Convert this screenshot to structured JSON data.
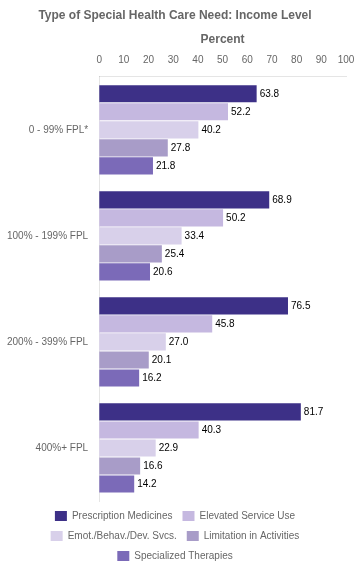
{
  "chart_data": {
    "type": "bar",
    "orientation": "horizontal",
    "title": "Type of Special Health Care Need: Income Level",
    "xlabel": "Percent",
    "categories": [
      "0 - 99% FPL*",
      "100% - 199% FPL",
      "200% - 399% FPL",
      "400%+ FPL"
    ],
    "series": [
      {
        "name": "Prescription Medicines",
        "color": "#3d3087",
        "values": [
          63.8,
          68.9,
          76.5,
          81.7
        ]
      },
      {
        "name": "Elevated Service Use",
        "color": "#c5b8e0",
        "values": [
          52.2,
          50.2,
          45.8,
          40.3
        ]
      },
      {
        "name": "Emot./Behav./Dev. Svcs.",
        "color": "#d8d0ea",
        "values": [
          40.2,
          33.4,
          27.0,
          22.9
        ],
        "value_labels": [
          "40.2",
          "33.4",
          "27.0",
          "22.9"
        ]
      },
      {
        "name": "Limitation in Activities",
        "color": "#a89cc8",
        "values": [
          27.8,
          25.4,
          20.1,
          16.6
        ]
      },
      {
        "name": "Specialized Therapies",
        "color": "#7b6ab8",
        "values": [
          21.8,
          20.6,
          16.2,
          14.2
        ]
      }
    ],
    "xlim": [
      0,
      100
    ],
    "xticks": [
      0,
      10,
      20,
      30,
      40,
      50,
      60,
      70,
      80,
      90,
      100
    ],
    "data_labels": true,
    "grid": false,
    "legend": "bottom"
  }
}
